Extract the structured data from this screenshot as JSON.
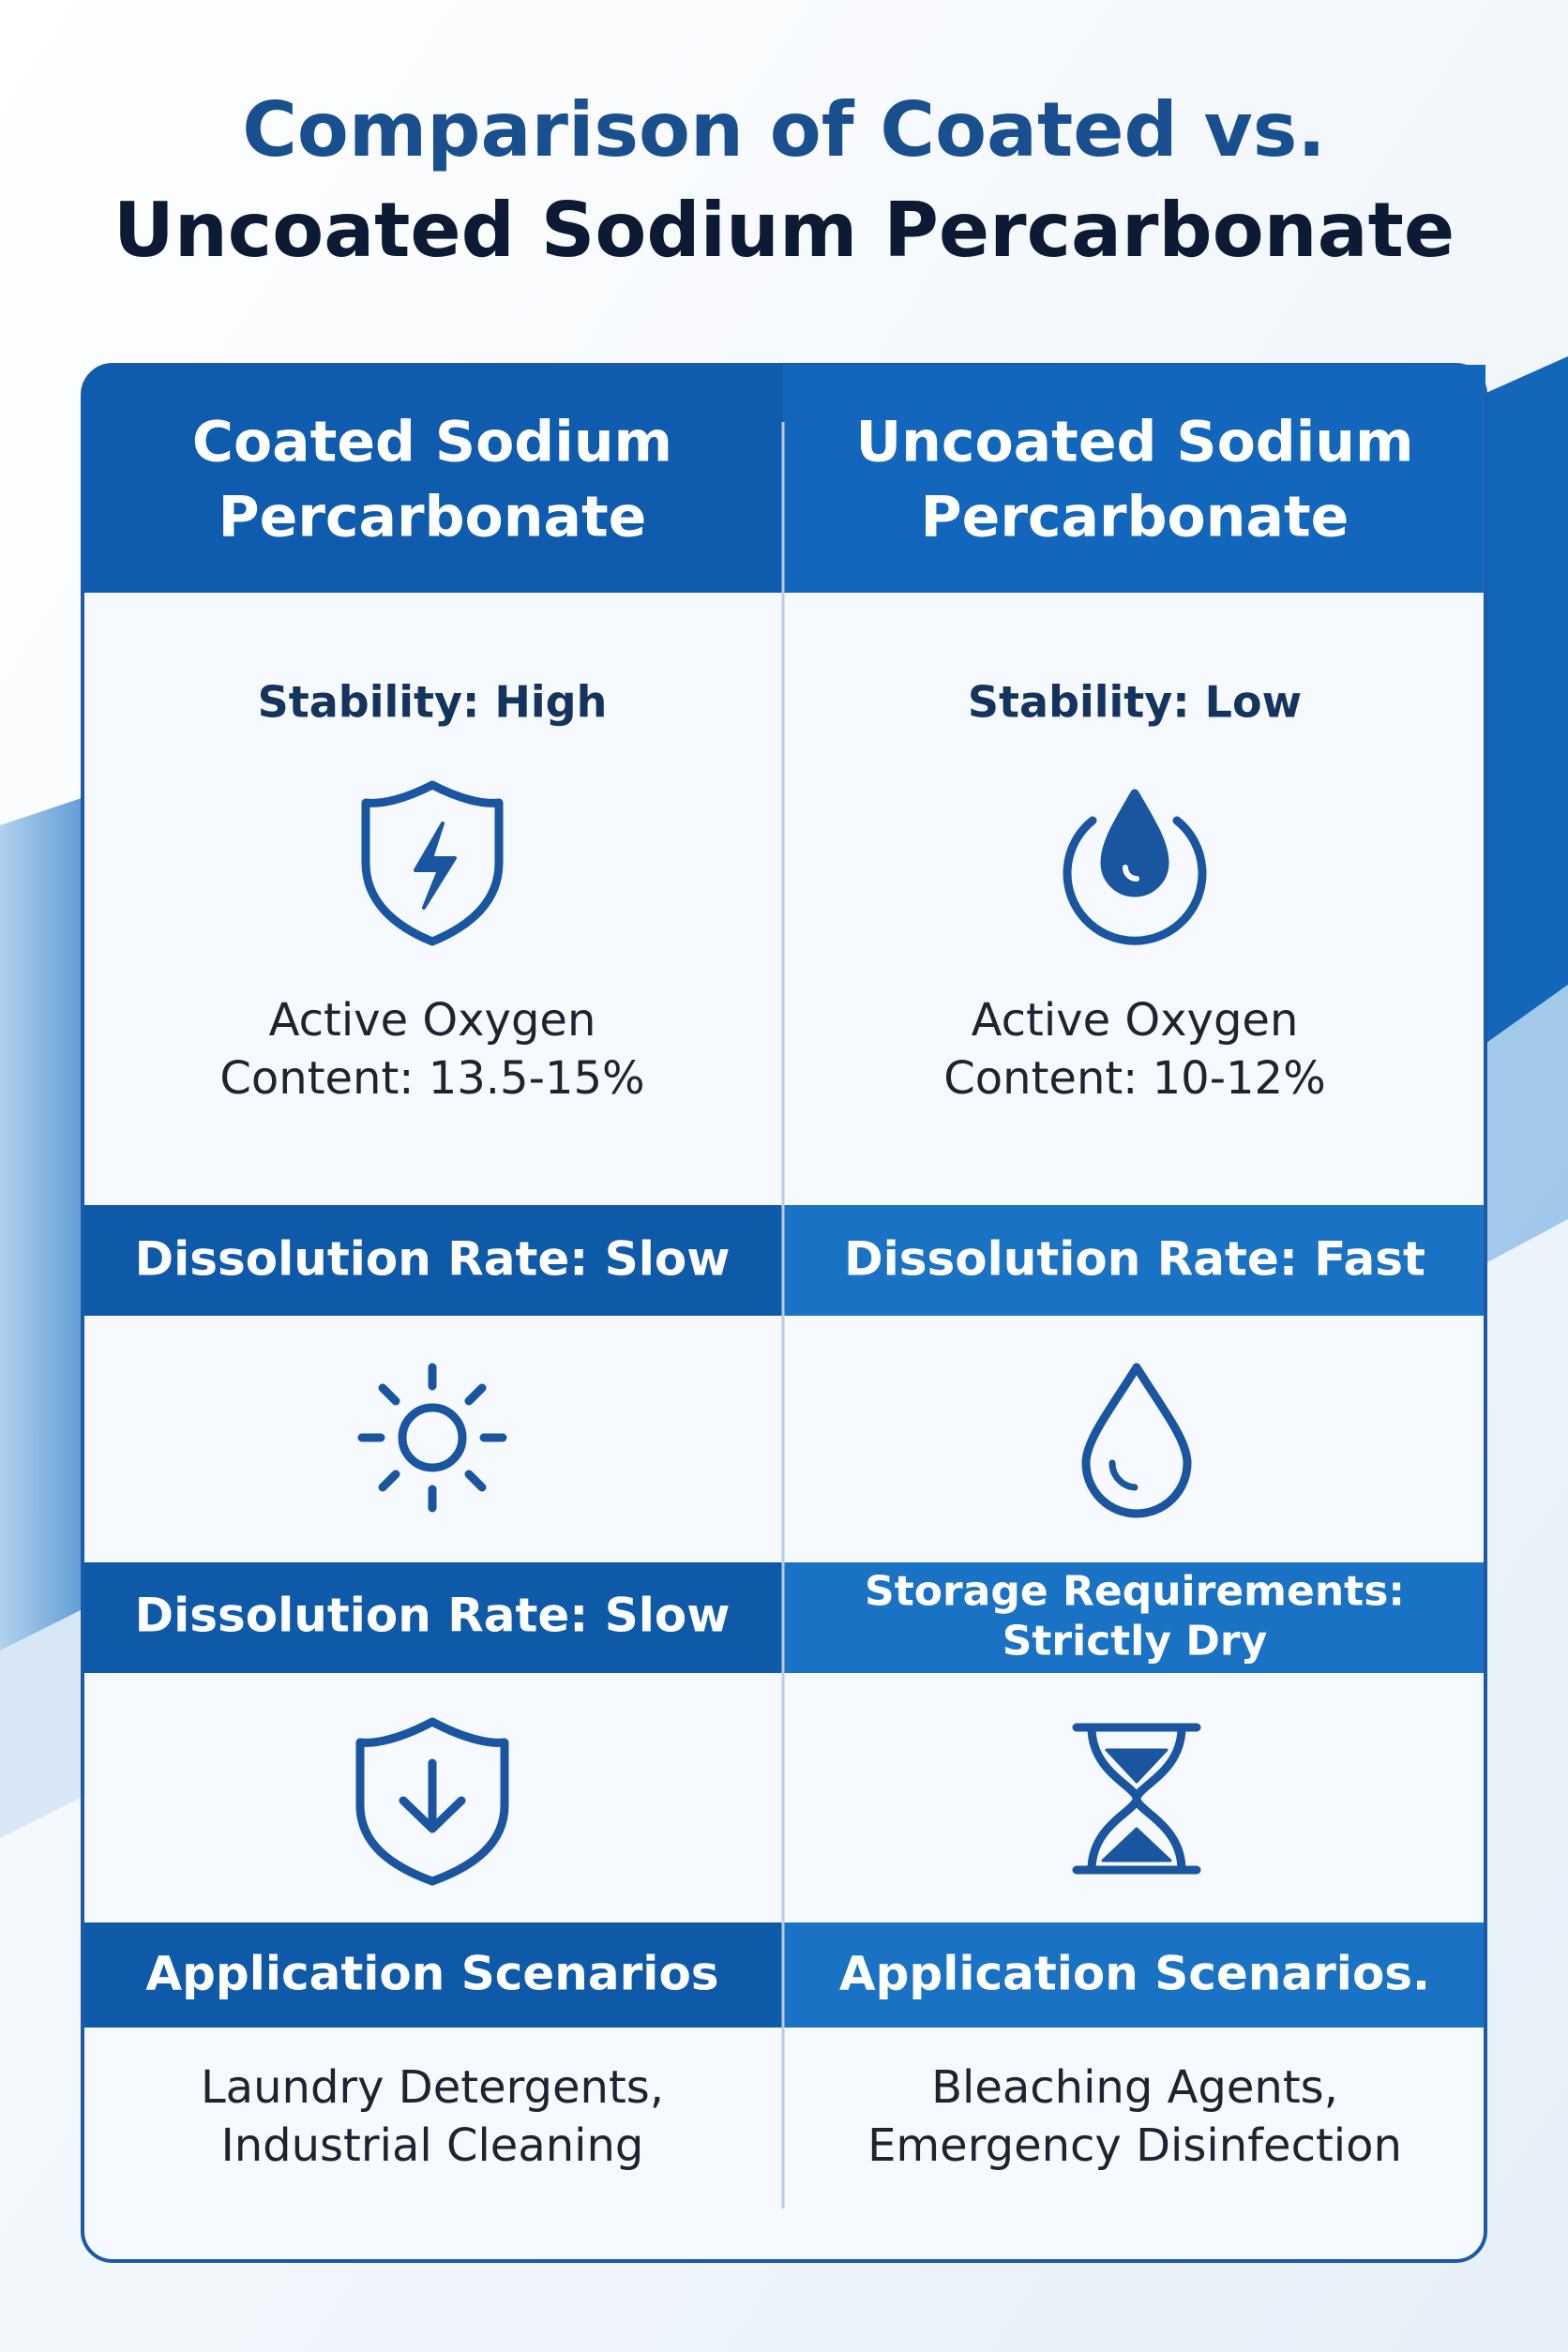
{
  "title": [
    "Comparison of Coated vs.",
    "Uncoated Sodium Percarbonate"
  ],
  "columns": [
    {
      "header": [
        "Coated Sodium",
        "Percarbonate"
      ],
      "stability": "Stability: High",
      "oxygen": [
        "Active Oxygen",
        "Content: 13.5-15%"
      ],
      "bar1": [
        "Dissolution Rate: Slow"
      ],
      "bar2": [
        "Dissolution Rate: Slow"
      ],
      "bar3": [
        "Application Scenarios"
      ],
      "applications": [
        "Laundry Detergents,",
        "Industrial Cleaning"
      ]
    },
    {
      "header": [
        "Uncoated Sodium",
        "Percarbonate"
      ],
      "stability": "Stability: Low",
      "oxygen": [
        "Active Oxygen",
        "Content: 10-12%"
      ],
      "bar1": [
        "Dissolution Rate: Fast"
      ],
      "bar2": [
        "Storage Requirements:",
        "Strictly Dry"
      ],
      "bar3": [
        "Application Scenarios."
      ],
      "applications": [
        "Bleaching Agents,",
        "Emergency Disinfection"
      ]
    }
  ]
}
